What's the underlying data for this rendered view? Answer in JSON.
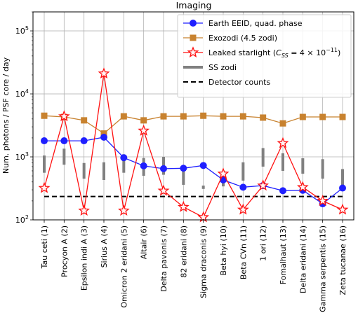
{
  "chart_data": {
    "type": "line",
    "title": "Imaging",
    "ylabel": "Num. photons / PSF core / day",
    "xlabel": "",
    "yscale": "log",
    "ylim": [
      100,
      200000
    ],
    "yticks": [
      {
        "value": 100,
        "base": "10",
        "exp": "2"
      },
      {
        "value": 1000,
        "base": "10",
        "exp": "3"
      },
      {
        "value": 10000,
        "base": "10",
        "exp": "4"
      },
      {
        "value": 100000,
        "base": "10",
        "exp": "5"
      }
    ],
    "grid": true,
    "legend_position": "top-right",
    "categories": [
      "Tau ceti (1)",
      "Procyon A (2)",
      "Epsilon indi A (3)",
      "Sirius A (4)",
      "Omicron 2 eridani (5)",
      "Altair (6)",
      "Delta pavonis (7)",
      "82 eridani (8)",
      "Sigma draconis (9)",
      "Beta hyi (10)",
      "Beta CVn (11)",
      "1 ori (12)",
      "Fomalhaut (13)",
      "Delta eridani (14)",
      "Gamma serpentis (15)",
      "Zeta tucanae (16)"
    ],
    "series": [
      {
        "name": "Earth EEID, quad. phase",
        "kind": "line-circle",
        "color": "#1f1fff",
        "values": [
          1800,
          1800,
          1800,
          2050,
          970,
          720,
          650,
          660,
          730,
          430,
          330,
          350,
          290,
          295,
          180,
          320
        ]
      },
      {
        "name": "Exozodi (4.5 zodi)",
        "kind": "line-square",
        "color": "#c8822f",
        "values": [
          4500,
          4300,
          3800,
          2350,
          4400,
          3800,
          4400,
          4400,
          4500,
          4400,
          4400,
          4200,
          3400,
          4300,
          4300,
          4300
        ]
      },
      {
        "name": "Leaked starlight",
        "kind": "line-star",
        "color": "#ff1111",
        "values": [
          320,
          4400,
          140,
          21000,
          140,
          2600,
          290,
          160,
          110,
          540,
          145,
          350,
          1650,
          330,
          200,
          145
        ]
      },
      {
        "name": "SS zodi",
        "kind": "range-bar",
        "color": "#808080",
        "low": [
          560,
          750,
          450,
          430,
          560,
          500,
          520,
          360,
          310,
          340,
          420,
          700,
          600,
          540,
          450,
          330
        ],
        "high": [
          1050,
          1350,
          800,
          820,
          1100,
          960,
          1000,
          700,
          350,
          580,
          820,
          1380,
          1140,
          950,
          920,
          640
        ]
      },
      {
        "name": "Detector counts",
        "kind": "hline",
        "color": "#000000",
        "value": 235
      }
    ],
    "legend": [
      {
        "label": "Earth EEID, quad. phase"
      },
      {
        "label": "Exozodi (4.5 zodi)"
      },
      {
        "label_prefix": "Leaked starlight (",
        "label_var": "C",
        "label_sub": "SS",
        "label_mid": " = 4 × 10",
        "label_sup": "−11",
        "label_suffix": ")"
      },
      {
        "label": "SS zodi"
      },
      {
        "label": "Detector counts"
      }
    ]
  }
}
